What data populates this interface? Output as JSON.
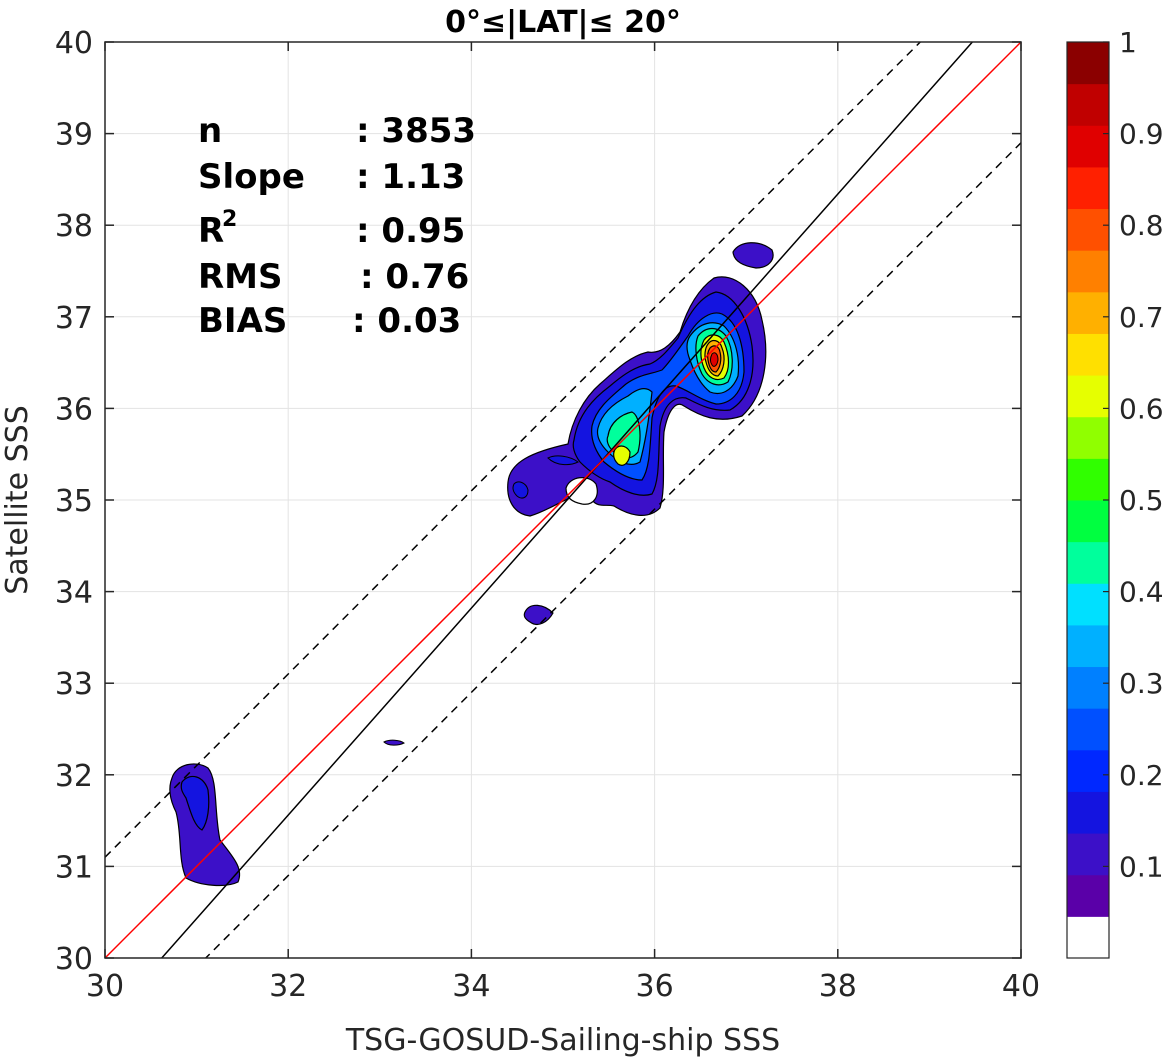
{
  "chart_data": {
    "type": "contour-density",
    "title": "0°≤|LAT|≤ 20°",
    "xlabel": "TSG-GOSUD-Sailing-ship SSS",
    "ylabel": "Satellite SSS",
    "xlim": [
      30,
      40
    ],
    "ylim": [
      30,
      40
    ],
    "xticks": [
      "30",
      "32",
      "34",
      "36",
      "38",
      "40"
    ],
    "yticks": [
      "30",
      "31",
      "32",
      "33",
      "34",
      "35",
      "36",
      "37",
      "38",
      "39",
      "40"
    ],
    "grid": true,
    "stats": [
      {
        "name": "n",
        "value": ": 3853"
      },
      {
        "name": "Slope",
        "value": ": 1.13"
      },
      {
        "name": "R",
        "sup": "2",
        "value": ": 0.95"
      },
      {
        "name": "RMS",
        "value": ": 0.76"
      },
      {
        "name": "BIAS",
        "value": ": 0.03"
      }
    ],
    "reference_lines": {
      "one_to_one": {
        "color": "#ff0000",
        "slope": 1,
        "intercept": 0
      },
      "regression": {
        "color": "#000000",
        "slope": 1.13,
        "intercept": -4.6
      },
      "bounds": {
        "color": "#000000",
        "style": "dashed",
        "slope": 1,
        "offset": 1.1
      }
    },
    "density_peak": {
      "x": 36.65,
      "y": 36.5,
      "value": 0.9
    },
    "colorbar": {
      "range": [
        0,
        1
      ],
      "tick_labels": [
        "0.1",
        "0.2",
        "0.3",
        "0.4",
        "0.5",
        "0.6",
        "0.7",
        "0.8",
        "0.9",
        "1"
      ],
      "tick_values": [
        0.1,
        0.2,
        0.3,
        0.4,
        0.5,
        0.6,
        0.7,
        0.8,
        0.9,
        1.0
      ],
      "colors": [
        "#ffffff",
        "#5a00a8",
        "#3c10c8",
        "#1414e0",
        "#0028ff",
        "#0050ff",
        "#0080ff",
        "#00b0ff",
        "#00e0ff",
        "#00ff9c",
        "#00ff40",
        "#30ff00",
        "#90ff00",
        "#e6ff00",
        "#ffe000",
        "#ffb000",
        "#ff8000",
        "#ff5000",
        "#ff2000",
        "#e00000",
        "#c00000",
        "#8b0000"
      ]
    }
  }
}
